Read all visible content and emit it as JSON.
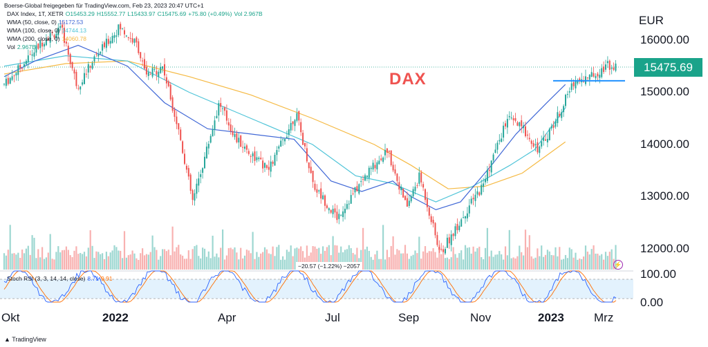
{
  "header": {
    "text": "Boerse-Global freigegeben für TradingView.com, Feb 23, 2023 20:47 UTC+1"
  },
  "legend": {
    "symbol": "DAX Index, 1T, XETR",
    "o": "O15453.29",
    "h": "H15552.77",
    "l": "L15433.97",
    "c": "C15475.69",
    "chg": "+75.80 (+0.49%)",
    "vol_inline": "Vol 2.967B",
    "wma50_label": "WMA (50, close, 0)",
    "wma50_value": "15172.53",
    "wma100_label": "WMA (100, close, 0)",
    "wma100_value": "14744.13",
    "wma200_label": "WMA (200, close, 0)",
    "wma200_value": "14060.78",
    "vol_label": "Vol",
    "vol_value": "2.967B",
    "stoch_label": "Stoch RSI (3, 3, 14, 14, close)",
    "stoch_k": "8.71",
    "stoch_d": "9.91"
  },
  "title": "DAX",
  "currency": "EUR",
  "price_tag": "15475.69",
  "volume_tooltip": "−20.57 (−1.22%) −2057",
  "footer": "TradingView",
  "colors": {
    "up": "#26a69a",
    "down": "#ef5350",
    "wma50": "#3f67d6",
    "wma100": "#4fc4d8",
    "wma200": "#f5b942",
    "stoch_k": "#2962ff",
    "stoch_d": "#ff6d00",
    "hline": "#1e90ff",
    "tag": "#1aa38a"
  },
  "chart_data": {
    "type": "candlestick",
    "y_unit": "EUR",
    "yticks": [
      "16000.00",
      "15000.00",
      "14000.00",
      "13000.00",
      "12000.00"
    ],
    "ylim": [
      11650,
      16450
    ],
    "xticks": [
      "Okt",
      "2022",
      "Apr",
      "Jul",
      "Sep",
      "Nov",
      "2023",
      "Mrz"
    ],
    "xticks_bold": [
      "2022",
      "2023"
    ],
    "last_price": 15475.69,
    "resistance_line": 15220,
    "close_path": [
      {
        "x": "2021-10-01",
        "y": 15150
      },
      {
        "x": "2021-10-15",
        "y": 15500
      },
      {
        "x": "2021-11-05",
        "y": 16050
      },
      {
        "x": "2021-11-18",
        "y": 16200
      },
      {
        "x": "2021-12-01",
        "y": 15100
      },
      {
        "x": "2021-12-15",
        "y": 15650
      },
      {
        "x": "2022-01-05",
        "y": 16250
      },
      {
        "x": "2022-01-20",
        "y": 15900
      },
      {
        "x": "2022-01-27",
        "y": 15300
      },
      {
        "x": "2022-02-10",
        "y": 15500
      },
      {
        "x": "2022-02-24",
        "y": 14200
      },
      {
        "x": "2022-03-07",
        "y": 12900
      },
      {
        "x": "2022-03-29",
        "y": 14800
      },
      {
        "x": "2022-04-12",
        "y": 14100
      },
      {
        "x": "2022-05-09",
        "y": 13500
      },
      {
        "x": "2022-06-01",
        "y": 14600
      },
      {
        "x": "2022-06-16",
        "y": 13200
      },
      {
        "x": "2022-07-05",
        "y": 12600
      },
      {
        "x": "2022-08-01",
        "y": 13500
      },
      {
        "x": "2022-08-16",
        "y": 13900
      },
      {
        "x": "2022-09-01",
        "y": 12800
      },
      {
        "x": "2022-09-12",
        "y": 13400
      },
      {
        "x": "2022-09-29",
        "y": 11900
      },
      {
        "x": "2022-10-20",
        "y": 12700
      },
      {
        "x": "2022-11-03",
        "y": 13200
      },
      {
        "x": "2022-11-24",
        "y": 14500
      },
      {
        "x": "2022-12-07",
        "y": 14300
      },
      {
        "x": "2022-12-20",
        "y": 13900
      },
      {
        "x": "2023-01-04",
        "y": 14500
      },
      {
        "x": "2023-01-18",
        "y": 15200
      },
      {
        "x": "2023-02-01",
        "y": 15300
      },
      {
        "x": "2023-02-16",
        "y": 15530
      },
      {
        "x": "2023-02-23",
        "y": 15475
      }
    ],
    "wma50": [
      [
        0.0,
        15300
      ],
      [
        0.05,
        15600
      ],
      [
        0.12,
        15900
      ],
      [
        0.2,
        15500
      ],
      [
        0.26,
        14800
      ],
      [
        0.33,
        14300
      ],
      [
        0.4,
        14200
      ],
      [
        0.47,
        14100
      ],
      [
        0.53,
        13300
      ],
      [
        0.58,
        13100
      ],
      [
        0.63,
        13300
      ],
      [
        0.66,
        13000
      ],
      [
        0.7,
        12750
      ],
      [
        0.74,
        12900
      ],
      [
        0.79,
        13600
      ],
      [
        0.83,
        14200
      ],
      [
        0.88,
        14800
      ],
      [
        0.91,
        15150
      ]
    ],
    "wma100": [
      [
        0.0,
        15500
      ],
      [
        0.1,
        15700
      ],
      [
        0.2,
        15600
      ],
      [
        0.3,
        15000
      ],
      [
        0.4,
        14500
      ],
      [
        0.5,
        14000
      ],
      [
        0.57,
        13400
      ],
      [
        0.63,
        13250
      ],
      [
        0.7,
        12900
      ],
      [
        0.76,
        13200
      ],
      [
        0.82,
        13600
      ],
      [
        0.86,
        13900
      ],
      [
        0.91,
        14700
      ]
    ],
    "wma200": [
      [
        0.0,
        15350
      ],
      [
        0.1,
        15550
      ],
      [
        0.2,
        15600
      ],
      [
        0.3,
        15300
      ],
      [
        0.4,
        14950
      ],
      [
        0.5,
        14500
      ],
      [
        0.6,
        14000
      ],
      [
        0.66,
        13600
      ],
      [
        0.72,
        13150
      ],
      [
        0.78,
        13200
      ],
      [
        0.84,
        13450
      ],
      [
        0.91,
        14050
      ]
    ],
    "rsi_ticks": [
      "100.00",
      "0.00"
    ]
  }
}
